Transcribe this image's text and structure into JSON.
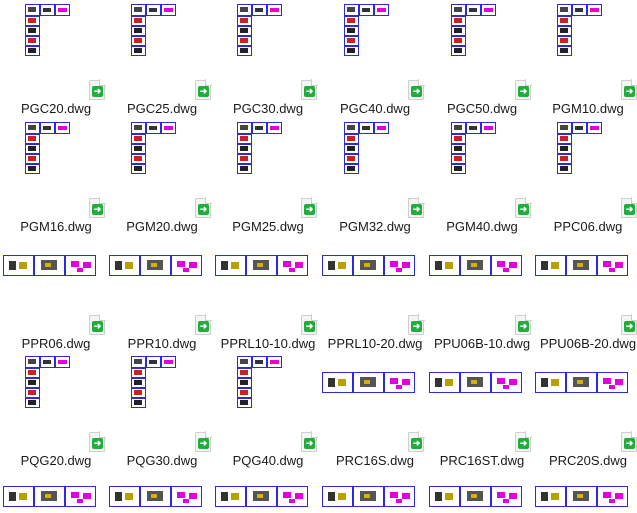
{
  "window": {
    "view": "large-icons"
  },
  "files": [
    {
      "name": "PGC20.dwg",
      "layout": "v"
    },
    {
      "name": "PGC25.dwg",
      "layout": "v"
    },
    {
      "name": "PGC30.dwg",
      "layout": "v"
    },
    {
      "name": "PGC40.dwg",
      "layout": "v"
    },
    {
      "name": "PGC50.dwg",
      "layout": "v"
    },
    {
      "name": "PGM10.dwg",
      "layout": "v"
    },
    {
      "name": "PGM16.dwg",
      "layout": "v"
    },
    {
      "name": "PGM20.dwg",
      "layout": "v"
    },
    {
      "name": "PGM25.dwg",
      "layout": "v"
    },
    {
      "name": "PGM32.dwg",
      "layout": "v"
    },
    {
      "name": "PGM40.dwg",
      "layout": "v"
    },
    {
      "name": "PPC06.dwg",
      "layout": "v"
    },
    {
      "name": "PPR06.dwg",
      "layout": "h"
    },
    {
      "name": "PPR10.dwg",
      "layout": "h"
    },
    {
      "name": "PPRL10-10.dwg",
      "layout": "h"
    },
    {
      "name": "PPRL10-20.dwg",
      "layout": "h"
    },
    {
      "name": "PPU06B-10.dwg",
      "layout": "h"
    },
    {
      "name": "PPU06B-20.dwg",
      "layout": "h"
    },
    {
      "name": "PQG20.dwg",
      "layout": "v"
    },
    {
      "name": "PQG30.dwg",
      "layout": "v"
    },
    {
      "name": "PQG40.dwg",
      "layout": "v"
    },
    {
      "name": "PRC16S.dwg",
      "layout": "h"
    },
    {
      "name": "PRC16ST.dwg",
      "layout": "h"
    },
    {
      "name": "PRC20S.dwg",
      "layout": "h"
    }
  ],
  "icons": {
    "file": "dwg-file-icon",
    "badge": "green-arrow-icon"
  },
  "colors": {
    "frame": "#2b2bd9",
    "magenta": "#e000e0",
    "green": "#1fae3c",
    "text": "#1a1a1a"
  }
}
